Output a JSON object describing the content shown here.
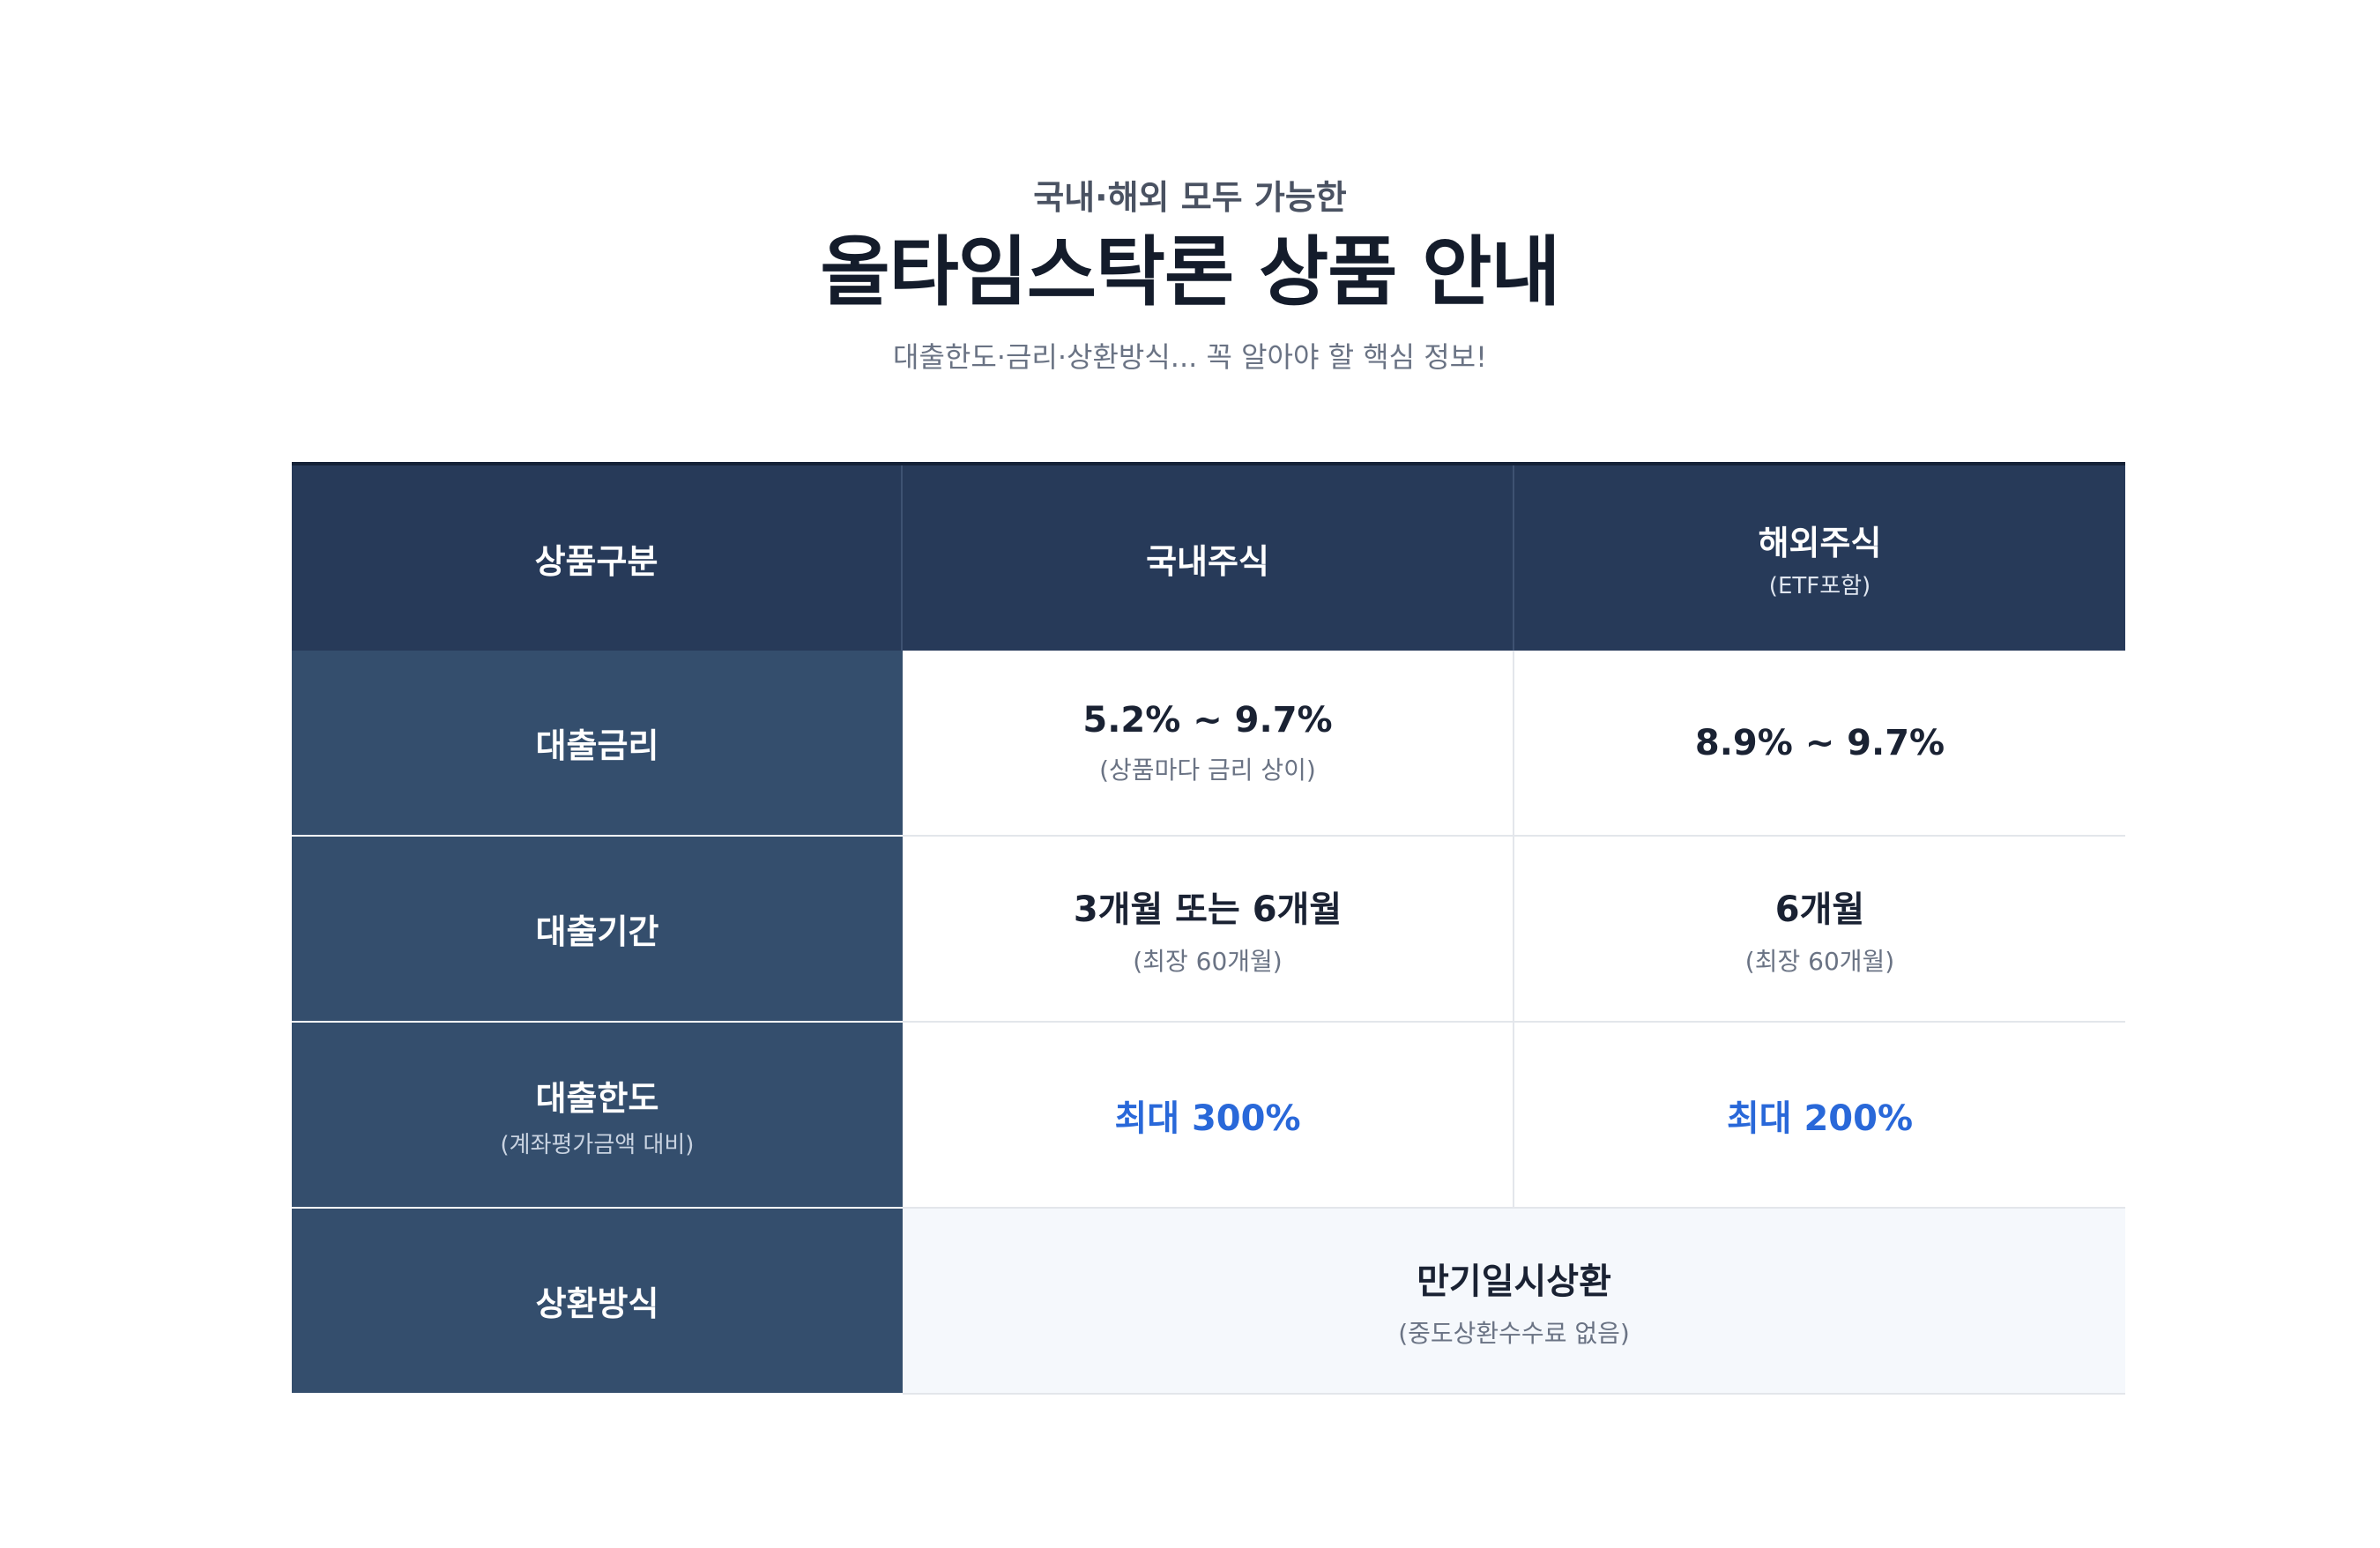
{
  "header": {
    "eyebrow": "국내·해외 모두 가능한",
    "title": "올타임스탁론 상품 안내",
    "subtitle": "대출한도·금리·상환방식... 꼭 알아야 할 핵심 정보!"
  },
  "table": {
    "columns": {
      "category": "상품구분",
      "domestic": "국내주식",
      "overseas": "해외주식",
      "overseas_note": "(ETF포함)"
    },
    "rows": {
      "rate": {
        "label": "대출금리",
        "domestic": "5.2% ~ 9.7%",
        "domestic_note": "(상품마다 금리 상이)",
        "overseas": "8.9% ~ 9.7%"
      },
      "term": {
        "label": "대출기간",
        "domestic": "3개월 또는 6개월",
        "domestic_note": "(최장 60개월)",
        "overseas": "6개월",
        "overseas_note": "(최장 60개월)"
      },
      "limit": {
        "label": "대출한도",
        "label_note": "(계좌평가금액 대비)",
        "domestic": "최대 300%",
        "overseas": "최대 200%"
      },
      "repayment": {
        "label": "상환방식",
        "value": "만기일시상환",
        "note": "(중도상환수수료 없음)"
      }
    }
  },
  "colors": {
    "header_bg": "#273a59",
    "label_bg": "#344e6d",
    "accent_blue": "#2968d9",
    "span_bg": "#f5f8fc"
  }
}
